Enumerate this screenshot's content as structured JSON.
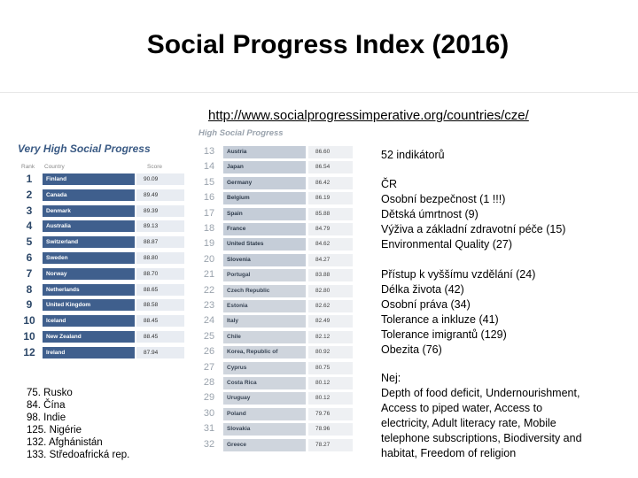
{
  "title": "Social Progress Index (2016)",
  "url": "http://www.socialprogressimperative.org/countries/cze/",
  "left_table": {
    "heading": "Very High Social Progress",
    "col_rank": "Rank",
    "col_country": "Country",
    "col_score": "Score",
    "rows": [
      {
        "rank": "1",
        "country": "Finland",
        "score": "90.09"
      },
      {
        "rank": "2",
        "country": "Canada",
        "score": "89.49"
      },
      {
        "rank": "3",
        "country": "Denmark",
        "score": "89.39"
      },
      {
        "rank": "4",
        "country": "Australia",
        "score": "89.13"
      },
      {
        "rank": "5",
        "country": "Switzerland",
        "score": "88.87"
      },
      {
        "rank": "6",
        "country": "Sweden",
        "score": "88.80"
      },
      {
        "rank": "7",
        "country": "Norway",
        "score": "88.70"
      },
      {
        "rank": "8",
        "country": "Netherlands",
        "score": "88.65"
      },
      {
        "rank": "9",
        "country": "United Kingdom",
        "score": "88.58"
      },
      {
        "rank": "10",
        "country": "Iceland",
        "score": "88.45"
      },
      {
        "rank": "10",
        "country": "New Zealand",
        "score": "88.45"
      },
      {
        "rank": "12",
        "country": "Ireland",
        "score": "87.94"
      }
    ]
  },
  "notes": [
    "75. Rusko",
    "84. Čína",
    "98. Indie",
    "125. Nigérie",
    "132. Afghánistán",
    "133. Středoafrická rep."
  ],
  "middle_table": {
    "heading": "High Social Progress",
    "rows": [
      {
        "rank": "13",
        "country": "Austria",
        "score": "86.60"
      },
      {
        "rank": "14",
        "country": "Japan",
        "score": "86.54"
      },
      {
        "rank": "15",
        "country": "Germany",
        "score": "86.42"
      },
      {
        "rank": "16",
        "country": "Belgium",
        "score": "86.19"
      },
      {
        "rank": "17",
        "country": "Spain",
        "score": "85.88"
      },
      {
        "rank": "18",
        "country": "France",
        "score": "84.79"
      },
      {
        "rank": "19",
        "country": "United States",
        "score": "84.62"
      },
      {
        "rank": "20",
        "country": "Slovenia",
        "score": "84.27"
      },
      {
        "rank": "21",
        "country": "Portugal",
        "score": "83.88"
      },
      {
        "rank": "22",
        "country": "Czech Republic",
        "score": "82.80"
      },
      {
        "rank": "23",
        "country": "Estonia",
        "score": "82.62"
      },
      {
        "rank": "24",
        "country": "Italy",
        "score": "82.49"
      },
      {
        "rank": "25",
        "country": "Chile",
        "score": "82.12"
      },
      {
        "rank": "26",
        "country": "Korea, Republic of",
        "score": "80.92"
      },
      {
        "rank": "27",
        "country": "Cyprus",
        "score": "80.75"
      },
      {
        "rank": "28",
        "country": "Costa Rica",
        "score": "80.12"
      },
      {
        "rank": "29",
        "country": "Uruguay",
        "score": "80.12"
      },
      {
        "rank": "30",
        "country": "Poland",
        "score": "79.76"
      },
      {
        "rank": "31",
        "country": "Slovakia",
        "score": "78.96"
      },
      {
        "rank": "32",
        "country": "Greece",
        "score": "78.27"
      }
    ]
  },
  "right": {
    "indicators": "52 indikátorů",
    "block1": [
      "ČR",
      "Osobní bezpečnost (1 !!!)",
      "Dětská úmrtnost (9)",
      "Výživa a základní zdravotní péče (15)",
      "Environmental Quality (27)"
    ],
    "block2": [
      "Přístup k vyššímu vzdělání (24)",
      "Délka života (42)",
      "Osobní práva (34)",
      "Tolerance a inkluze (41)",
      "Tolerance imigrantů (129)",
      "Obezita (76)"
    ],
    "block3": [
      "Nej:",
      "Depth of food deficit, Undernourishment,",
      "Access to piped water, Access to",
      "electricity, Adult literacy rate, Mobile",
      "telephone subscriptions, Biodiversity and",
      "habitat, Freedom of religion"
    ]
  }
}
